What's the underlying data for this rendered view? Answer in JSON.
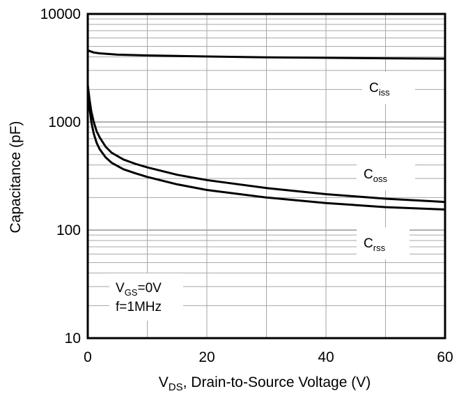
{
  "chart_data": {
    "type": "line",
    "title": "",
    "xlabel": {
      "main": "V",
      "sub": "DS",
      "rest": ", Drain-to-Source Voltage (V)"
    },
    "ylabel": "Capacitance (pF)",
    "xlim": [
      0,
      60
    ],
    "ylim": [
      10,
      10000
    ],
    "y_scale": "log",
    "grid": true,
    "x_ticks": [
      "0",
      "20",
      "40",
      "60"
    ],
    "y_ticks": [
      "10",
      "100",
      "1000",
      "10000"
    ],
    "series": [
      {
        "name": {
          "main": "C",
          "sub": "iss"
        },
        "x": [
          0,
          1,
          2,
          5,
          10,
          20,
          30,
          40,
          50,
          60
        ],
        "y": [
          4600,
          4400,
          4320,
          4200,
          4130,
          4040,
          3970,
          3930,
          3890,
          3860
        ]
      },
      {
        "name": {
          "main": "C",
          "sub": "oss"
        },
        "x": [
          0,
          0.3,
          0.6,
          1,
          1.5,
          2,
          3,
          4,
          6,
          8,
          10,
          15,
          20,
          30,
          40,
          50,
          60
        ],
        "y": [
          2200,
          1600,
          1250,
          1000,
          820,
          720,
          590,
          520,
          450,
          410,
          380,
          325,
          290,
          245,
          215,
          195,
          182
        ]
      },
      {
        "name": {
          "main": "C",
          "sub": "rss"
        },
        "x": [
          0,
          0.3,
          0.6,
          1,
          1.5,
          2,
          3,
          4,
          6,
          8,
          10,
          15,
          20,
          30,
          40,
          50,
          60
        ],
        "y": [
          2000,
          1350,
          1000,
          780,
          640,
          560,
          470,
          420,
          365,
          335,
          310,
          265,
          235,
          200,
          178,
          163,
          155
        ]
      }
    ],
    "annotation": {
      "line1": {
        "main": "V",
        "sub": "GS",
        "rest": "=0V"
      },
      "line2": "f=1MHz"
    }
  }
}
